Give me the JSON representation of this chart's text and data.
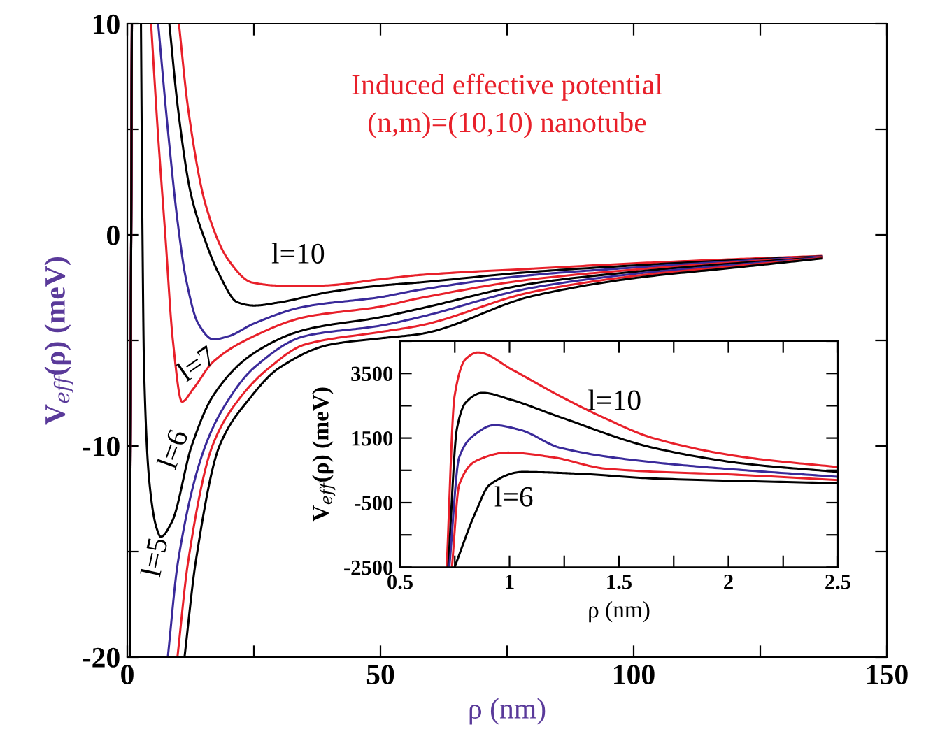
{
  "chart_data": [
    {
      "type": "line",
      "xlabel": "ρ (nm)",
      "ylabel": "V$_{eff}$(ρ) (meV)",
      "xlim": [
        0,
        150
      ],
      "ylim": [
        -20,
        10
      ],
      "xticks": [
        0,
        {
          "value": 25,
          "label": null
        },
        50,
        {
          "value": 75,
          "label": null
        },
        100,
        {
          "value": 125,
          "label": null
        },
        150
      ],
      "yticks": [
        -20,
        {
          "value": -15,
          "label": null
        },
        -10,
        {
          "value": -5,
          "label": null
        },
        0,
        {
          "value": 5,
          "label": null
        },
        10
      ],
      "annotations": [
        "Induced effective potential",
        "(n,m)=(10,10) nanotube",
        "l=10",
        "l=7",
        "l=6",
        "l=5"
      ],
      "series": [
        {
          "color": "#e8202a",
          "x": [
            0.5,
            0.9,
            null,
            10.2,
            12,
            15.5,
            20,
            24.6,
            30,
            38,
            50,
            57.7,
            80,
            100,
            120,
            137
          ],
          "values": [
            -20,
            10,
            null,
            10,
            6,
            1.4,
            -1.2,
            -2.25,
            -2.4,
            -2.4,
            -2.1,
            -1.9,
            -1.6,
            -1.35,
            -1.15,
            -1.0
          ]
        },
        {
          "color": "#000000",
          "x": [
            0.5,
            0.9,
            null,
            8.3,
            10,
            12.5,
            15.5,
            18,
            21.8,
            25,
            30,
            40,
            50,
            57.7,
            80,
            100,
            120,
            137
          ],
          "values": [
            -20,
            10,
            null,
            10,
            6,
            2.0,
            -0.35,
            -1.8,
            -3.2,
            -3.35,
            -3.2,
            -2.7,
            -2.4,
            -2.25,
            -1.75,
            -1.45,
            -1.2,
            -1.02
          ]
        },
        {
          "color": "#3a2a9a",
          "x": [
            0.5,
            0.9,
            null,
            6.1,
            8,
            10,
            11.6,
            14,
            17,
            20,
            25,
            35,
            50,
            57.7,
            80,
            100,
            120,
            137
          ],
          "values": [
            -20,
            10,
            null,
            10,
            5,
            0.5,
            -2.1,
            -4.2,
            -4.95,
            -4.8,
            -4.2,
            -3.4,
            -2.95,
            -2.6,
            -1.9,
            -1.55,
            -1.25,
            -1.03
          ]
        },
        {
          "color": "#e8202a",
          "x": [
            0.5,
            0.9,
            null,
            4.7,
            6,
            7.5,
            9,
            10.8,
            13,
            17,
            25,
            35,
            50,
            57.7,
            80,
            100,
            120,
            137
          ],
          "values": [
            -20,
            10,
            null,
            10,
            5,
            0,
            -5,
            -7.9,
            -7.3,
            -6.0,
            -4.8,
            -3.9,
            -3.4,
            -3.0,
            -2.1,
            -1.65,
            -1.3,
            -1.05
          ]
        },
        {
          "color": "#000000",
          "x": [
            0.5,
            0.9,
            null,
            2.7,
            3.0,
            3.3,
            4.4,
            5.8,
            6.6,
            8.8,
            12.7,
            17,
            25,
            35,
            50,
            57.7,
            80,
            100,
            120,
            137
          ],
          "values": [
            -20,
            10,
            null,
            10,
            0,
            -6.2,
            -11.8,
            -13.9,
            -14.3,
            -13.6,
            -10,
            -7.6,
            -5.6,
            -4.5,
            -3.9,
            -3.5,
            -2.3,
            -1.75,
            -1.35,
            -1.07
          ]
        },
        {
          "color": "#3a2a9a",
          "x": [
            0.5,
            0.9,
            null,
            8.0,
            10,
            15.4,
            20,
            25,
            35,
            50,
            57.7,
            80,
            100,
            120,
            137
          ],
          "values": [
            -20,
            10,
            null,
            -20,
            -15.5,
            -10,
            -7.8,
            -6.3,
            -4.8,
            -4.3,
            -3.9,
            -2.5,
            -1.85,
            -1.42,
            -1.08
          ]
        },
        {
          "color": "#e8202a",
          "x": [
            0.5,
            0.9,
            null,
            9.9,
            12,
            16.8,
            22,
            28,
            35,
            50,
            57.7,
            80,
            100,
            120,
            137
          ],
          "values": [
            -20,
            10,
            null,
            -20,
            -15.5,
            -10,
            -7.8,
            -6.3,
            -5.2,
            -4.6,
            -4.3,
            -2.7,
            -1.95,
            -1.48,
            -1.1
          ]
        },
        {
          "color": "#000000",
          "x": [
            0.5,
            0.9,
            null,
            11.3,
            13.5,
            18.2,
            24,
            30,
            40,
            50,
            57.7,
            80,
            100,
            120,
            137
          ],
          "values": [
            -20,
            10,
            null,
            -20,
            -15.5,
            -10,
            -7.8,
            -6.3,
            -5.2,
            -4.9,
            -4.7,
            -2.9,
            -2.05,
            -1.55,
            -1.12
          ]
        }
      ]
    },
    {
      "type": "line",
      "xlabel": "ρ (nm)",
      "ylabel": "V$_{eff}$(ρ) (meV)",
      "xlim": [
        0.5,
        2.5
      ],
      "ylim": [
        -2500,
        4500
      ],
      "xticks": [
        0.5,
        {
          "value": 0.75,
          "label": null
        },
        1,
        {
          "value": 1.25,
          "label": null
        },
        1.5,
        {
          "value": 1.75,
          "label": null
        },
        2,
        {
          "value": 2.25,
          "label": null
        },
        2.5
      ],
      "yticks": [
        -2500,
        {
          "value": -1500,
          "label": null
        },
        -500,
        {
          "value": 500,
          "label": null
        },
        1500,
        {
          "value": 2500,
          "label": null
        },
        3500,
        {
          "value": 4500,
          "label": null
        }
      ],
      "annotations": [
        "l=10",
        "l=6"
      ],
      "series": [
        {
          "color": "#e8202a",
          "x": [
            0.713,
            0.749,
            0.8,
            0.856,
            1.016,
            1.23,
            1.44,
            1.655,
            2.08,
            2.5
          ],
          "values": [
            -2500,
            2800,
            3950,
            4150,
            3600,
            2800,
            2100,
            1500,
            900,
            600
          ]
        },
        {
          "color": "#000000",
          "x": [
            0.72,
            0.76,
            0.8,
            0.877,
            1.0,
            1.23,
            1.655,
            2.08,
            2.5
          ],
          "values": [
            -2500,
            1800,
            2600,
            2900,
            2700,
            2150,
            1200,
            700,
            450
          ]
        },
        {
          "color": "#3a2a9a",
          "x": [
            0.725,
            0.77,
            0.84,
            0.93,
            1.05,
            1.23,
            1.655,
            2.08,
            2.5
          ],
          "values": [
            -2500,
            900,
            1600,
            1900,
            1750,
            1200,
            750,
            500,
            300
          ]
        },
        {
          "color": "#e8202a",
          "x": [
            0.737,
            0.77,
            0.85,
            0.994,
            1.2,
            1.44,
            2.08,
            2.5
          ],
          "values": [
            -2500,
            50,
            800,
            1050,
            900,
            550,
            350,
            200
          ]
        },
        {
          "color": "#000000",
          "x": [
            0.749,
            0.845,
            0.909,
            1.06,
            1.3,
            1.655,
            2.5
          ],
          "values": [
            -2500,
            -800,
            50,
            450,
            400,
            250,
            100
          ]
        }
      ]
    }
  ]
}
